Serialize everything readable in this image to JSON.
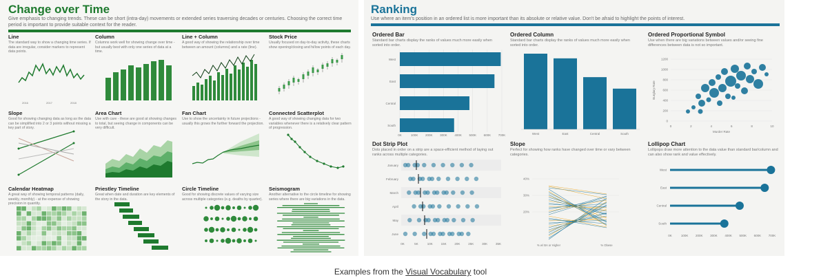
{
  "colors": {
    "green_dark": "#1e7a2e",
    "green_mid": "#3d9a4b",
    "green_light": "#a9d4a6",
    "teal": "#1a7399",
    "orange": "#e6a21a"
  },
  "left": {
    "title": "Change over Time",
    "subtitle": "Give emphasis to changing trends. These can be short (intra-day) movements or extended series traversing decades or centuries. Choosing the correct time period is important to provide suitable context for the reader.",
    "cells": [
      {
        "title": "Line",
        "desc": "The standard way to show a changing time series. If data are irregular, consider markers to represent data points."
      },
      {
        "title": "Column",
        "desc": "Columns work well for showing change over time - but usually best with only one series of data at a time."
      },
      {
        "title": "Line + Column",
        "desc": "A good way of showing the relationship over time between an amount (columns) and a rate (line)."
      },
      {
        "title": "Stock Price",
        "desc": "Usually focused on day-to-day activity, these charts show opening/closing and hi/low points of each day."
      },
      {
        "title": "Slope",
        "desc": "Good for showing changing data as long as the data can be simplified into 2 or 3 points without missing a key part of story."
      },
      {
        "title": "Area Chart",
        "desc": "Use with care - these are good at showing changes to total, but seeing change in components can be very difficult."
      },
      {
        "title": "Fan Chart",
        "desc": "Use to show the uncertainty in future projections - usually this grows the further forward the projection."
      },
      {
        "title": "Connected Scatterplot",
        "desc": "A good way of showing changing data for two variables whenever there is a relatively clear pattern of progression."
      },
      {
        "title": "Calendar Heatmap",
        "desc": "A great way of showing temporal patterns (daily, weekly, monthly) - at the expense of showing precision in quantity."
      },
      {
        "title": "Priestley Timeline",
        "desc": "Great when date and duration are key elements of the story in the data."
      },
      {
        "title": "Circle Timeline",
        "desc": "Good for showing discrete values of varying size across multiple categories (e.g. deaths by quarter)."
      },
      {
        "title": "Seismogram",
        "desc": "Another alternative to the circle timeline for showing series where there are big variations in the data."
      }
    ]
  },
  "right": {
    "title": "Ranking",
    "subtitle": "Use where an item's position in an ordered list is more important than its absolute or relative value. Don't be afraid to highlight the points of interest.",
    "cells": [
      {
        "title": "Ordered Bar",
        "desc": "Standard bar charts display the ranks of values much more easily when sorted into order."
      },
      {
        "title": "Ordered Column",
        "desc": "Standard bar charts display the ranks of values much more easily when sorted into order."
      },
      {
        "title": "Ordered Proportional Symbol",
        "desc": "Use when there are big variations between values and/or seeing fine differences between data is not so important."
      },
      {
        "title": "Dot Strip Plot",
        "desc": "Dots placed in order on a strip are a space-efficient method of laying out ranks across multiple categories."
      },
      {
        "title": "Slope",
        "desc": "Perfect for showing how ranks have changed over time or vary between categories."
      },
      {
        "title": "Lollipop Chart",
        "desc": "Lollipops draw more attention to the data value than standard bar/column and can also show rank and value effectively."
      }
    ]
  },
  "caption": {
    "prefix": "Examples from the ",
    "link": "Visual Vocabulary",
    "suffix": " tool"
  },
  "chart_data": [
    {
      "type": "bar",
      "title": "Ordered Bar",
      "categories": [
        "West",
        "East",
        "Central",
        "South"
      ],
      "values": [
        725000,
        680000,
        500000,
        390000
      ],
      "xticks": [
        "0K",
        "100K",
        "200K",
        "300K",
        "400K",
        "500K",
        "600K",
        "700K"
      ]
    },
    {
      "type": "bar",
      "title": "Ordered Column",
      "categories": [
        "West",
        "East",
        "Central",
        "South"
      ],
      "values": [
        725000,
        680000,
        500000,
        390000
      ]
    },
    {
      "type": "scatter",
      "title": "Ordered Proportional Symbol",
      "xlabel": "Murder Rate",
      "ylabel": "Burglary Rate",
      "xticks": [
        "0",
        "2",
        "4",
        "6",
        "8",
        "10"
      ],
      "yticks": [
        "0",
        "200",
        "400",
        "600",
        "800",
        "1000",
        "1200"
      ]
    },
    {
      "type": "scatter",
      "title": "Dot Strip Plot",
      "categories": [
        "January",
        "February",
        "March",
        "April",
        "May",
        "June"
      ],
      "xticks": [
        "0K",
        "5K",
        "10K",
        "15K",
        "20K",
        "25K",
        "30K",
        "35K"
      ]
    },
    {
      "type": "line",
      "title": "Slope",
      "x": [
        "% w/ BA or Higher",
        "% Obese"
      ],
      "yticks": [
        "20%",
        "30%",
        "40%"
      ]
    },
    {
      "type": "bar",
      "title": "Lollipop Chart",
      "categories": [
        "West",
        "East",
        "Central",
        "South"
      ],
      "values": [
        725000,
        680000,
        500000,
        390000
      ],
      "xticks": [
        "0K",
        "100K",
        "200K",
        "300K",
        "400K",
        "500K",
        "600K",
        "700K"
      ]
    }
  ]
}
